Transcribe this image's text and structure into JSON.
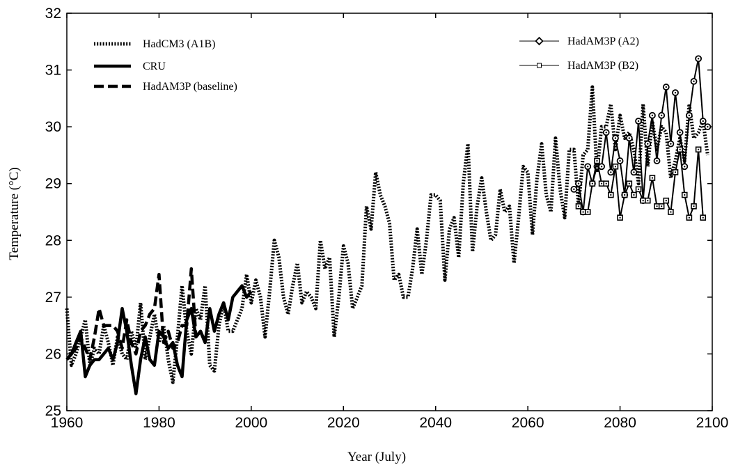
{
  "chart_data": {
    "type": "line",
    "xlabel": "Year (July)",
    "ylabel": "Temperature (°C)",
    "xlim": [
      1960,
      2100
    ],
    "ylim": [
      25,
      32
    ],
    "xticks": [
      "1960",
      "1980",
      "2000",
      "2020",
      "2040",
      "2060",
      "2080",
      "2100"
    ],
    "yticks": [
      "25",
      "26",
      "27",
      "28",
      "29",
      "30",
      "31",
      "32"
    ],
    "grid": false,
    "legend_left": [
      "HadCM3 (A1B)",
      "CRU",
      "HadAM3P (baseline)"
    ],
    "legend_right": [
      "HadAM3P (A2)",
      "HadAM3P (B2)"
    ],
    "series": [
      {
        "name": "HadCM3 (A1B)",
        "style": "dotted",
        "x": [
          1960,
          1961,
          1962,
          1963,
          1964,
          1965,
          1966,
          1967,
          1968,
          1969,
          1970,
          1971,
          1972,
          1973,
          1974,
          1975,
          1976,
          1977,
          1978,
          1979,
          1980,
          1981,
          1982,
          1983,
          1984,
          1985,
          1986,
          1987,
          1988,
          1989,
          1990,
          1991,
          1992,
          1993,
          1994,
          1995,
          1996,
          1997,
          1998,
          1999,
          2000,
          2001,
          2002,
          2003,
          2004,
          2005,
          2006,
          2007,
          2008,
          2009,
          2010,
          2011,
          2012,
          2013,
          2014,
          2015,
          2016,
          2017,
          2018,
          2019,
          2020,
          2021,
          2022,
          2023,
          2024,
          2025,
          2026,
          2027,
          2028,
          2029,
          2030,
          2031,
          2032,
          2033,
          2034,
          2035,
          2036,
          2037,
          2038,
          2039,
          2040,
          2041,
          2042,
          2043,
          2044,
          2045,
          2046,
          2047,
          2048,
          2049,
          2050,
          2051,
          2052,
          2053,
          2054,
          2055,
          2056,
          2057,
          2058,
          2059,
          2060,
          2061,
          2062,
          2063,
          2064,
          2065,
          2066,
          2067,
          2068,
          2069,
          2070,
          2071,
          2072,
          2073,
          2074,
          2075,
          2076,
          2077,
          2078,
          2079,
          2080,
          2081,
          2082,
          2083,
          2084,
          2085,
          2086,
          2087,
          2088,
          2089,
          2090,
          2091,
          2092,
          2093,
          2094,
          2095,
          2096,
          2097,
          2098,
          2099
        ],
        "y": [
          26.8,
          25.8,
          26.0,
          26.3,
          26.6,
          25.8,
          26.1,
          26.0,
          26.5,
          26.2,
          25.8,
          26.3,
          26.0,
          25.9,
          26.4,
          26.1,
          26.9,
          25.9,
          26.3,
          26.7,
          26.2,
          26.5,
          25.9,
          25.5,
          26.3,
          27.2,
          26.4,
          26.0,
          26.8,
          26.6,
          27.2,
          25.8,
          25.7,
          26.5,
          26.9,
          26.4,
          26.4,
          26.6,
          26.8,
          27.4,
          26.9,
          27.3,
          27.0,
          26.3,
          27.1,
          28.0,
          27.7,
          27.0,
          26.7,
          27.2,
          27.6,
          26.9,
          27.1,
          27.0,
          26.8,
          28.0,
          27.5,
          27.7,
          26.3,
          27.0,
          27.9,
          27.6,
          26.8,
          27.0,
          27.2,
          28.6,
          28.2,
          29.2,
          28.8,
          28.6,
          28.3,
          27.3,
          27.4,
          27.0,
          27.0,
          27.5,
          28.2,
          27.4,
          28.0,
          28.8,
          28.8,
          28.7,
          27.3,
          28.2,
          28.4,
          27.7,
          29.0,
          29.7,
          27.8,
          28.6,
          29.1,
          28.5,
          28.0,
          28.1,
          28.9,
          28.5,
          28.6,
          27.6,
          28.4,
          29.3,
          29.2,
          28.1,
          29.1,
          29.7,
          28.8,
          28.5,
          29.8,
          28.9,
          28.4,
          29.6,
          29.6,
          28.6,
          29.5,
          29.6,
          30.7,
          29.2,
          30.0,
          30.0,
          30.4,
          29.6,
          30.2,
          29.8,
          29.9,
          29.6,
          29.0,
          30.4,
          29.3,
          30.1,
          29.6,
          30.0,
          29.9,
          29.1,
          29.4,
          29.8,
          29.4,
          30.4,
          29.8,
          29.9,
          30.1,
          29.5
        ]
      },
      {
        "name": "CRU",
        "style": "solid",
        "x": [
          1960,
          1961,
          1962,
          1963,
          1964,
          1965,
          1966,
          1967,
          1968,
          1969,
          1970,
          1971,
          1972,
          1973,
          1974,
          1975,
          1976,
          1977,
          1978,
          1979,
          1980,
          1981,
          1982,
          1983,
          1984,
          1985,
          1986,
          1987,
          1988,
          1989,
          1990,
          1991,
          1992,
          1993,
          1994,
          1995,
          1996,
          1997,
          1998,
          1999,
          2000
        ],
        "y": [
          25.9,
          26.0,
          26.2,
          26.4,
          25.6,
          25.8,
          25.9,
          25.9,
          26.0,
          26.1,
          25.9,
          26.2,
          26.8,
          26.4,
          25.8,
          25.3,
          25.9,
          26.3,
          25.9,
          25.8,
          26.4,
          26.3,
          26.1,
          26.2,
          25.8,
          25.6,
          26.6,
          26.8,
          26.3,
          26.4,
          26.2,
          26.8,
          26.4,
          26.7,
          26.9,
          26.6,
          27.0,
          27.1,
          27.2,
          27.0,
          27.1
        ]
      },
      {
        "name": "HadAM3P (baseline)",
        "style": "dashed",
        "x": [
          1961,
          1962,
          1963,
          1964,
          1965,
          1966,
          1967,
          1968,
          1969,
          1970,
          1971,
          1972,
          1973,
          1974,
          1975,
          1976,
          1977,
          1978,
          1979,
          1980,
          1981,
          1982,
          1983,
          1984,
          1985,
          1986,
          1987,
          1988,
          1989,
          1990
        ],
        "y": [
          26.0,
          26.1,
          26.3,
          26.1,
          25.9,
          26.3,
          26.8,
          26.5,
          26.5,
          26.5,
          26.4,
          26.1,
          26.6,
          26.2,
          26.0,
          26.4,
          26.5,
          26.7,
          26.8,
          27.4,
          26.2,
          26.4,
          26.1,
          26.2,
          26.5,
          26.5,
          27.5,
          26.3,
          26.4,
          26.2
        ]
      },
      {
        "name": "HadAM3P (A2)",
        "style": "solid-circle",
        "x": [
          2070,
          2071,
          2072,
          2073,
          2074,
          2075,
          2076,
          2077,
          2078,
          2079,
          2080,
          2081,
          2082,
          2083,
          2084,
          2085,
          2086,
          2087,
          2088,
          2089,
          2090,
          2091,
          2092,
          2093,
          2094,
          2095,
          2096,
          2097,
          2098,
          2099
        ],
        "y": [
          28.9,
          29.0,
          28.5,
          29.3,
          29.0,
          29.3,
          29.3,
          29.9,
          29.2,
          29.8,
          29.4,
          28.8,
          29.8,
          29.2,
          30.1,
          28.7,
          29.7,
          30.2,
          29.4,
          30.2,
          30.7,
          29.7,
          30.6,
          29.9,
          29.3,
          30.2,
          30.8,
          31.2,
          30.1,
          30.0
        ]
      },
      {
        "name": "HadAM3P (B2)",
        "style": "solid-square",
        "x": [
          2071,
          2072,
          2073,
          2074,
          2075,
          2076,
          2077,
          2078,
          2079,
          2080,
          2081,
          2082,
          2083,
          2084,
          2085,
          2086,
          2087,
          2088,
          2089,
          2090,
          2091,
          2092,
          2093,
          2094,
          2095,
          2096,
          2097,
          2098
        ],
        "y": [
          28.6,
          28.5,
          28.5,
          29.0,
          29.4,
          29.0,
          29.0,
          28.8,
          29.3,
          28.4,
          28.8,
          29.0,
          28.8,
          28.9,
          28.7,
          28.7,
          29.1,
          28.6,
          28.6,
          28.7,
          28.5,
          29.2,
          29.6,
          28.8,
          28.4,
          28.6,
          29.6,
          28.4
        ]
      }
    ]
  }
}
